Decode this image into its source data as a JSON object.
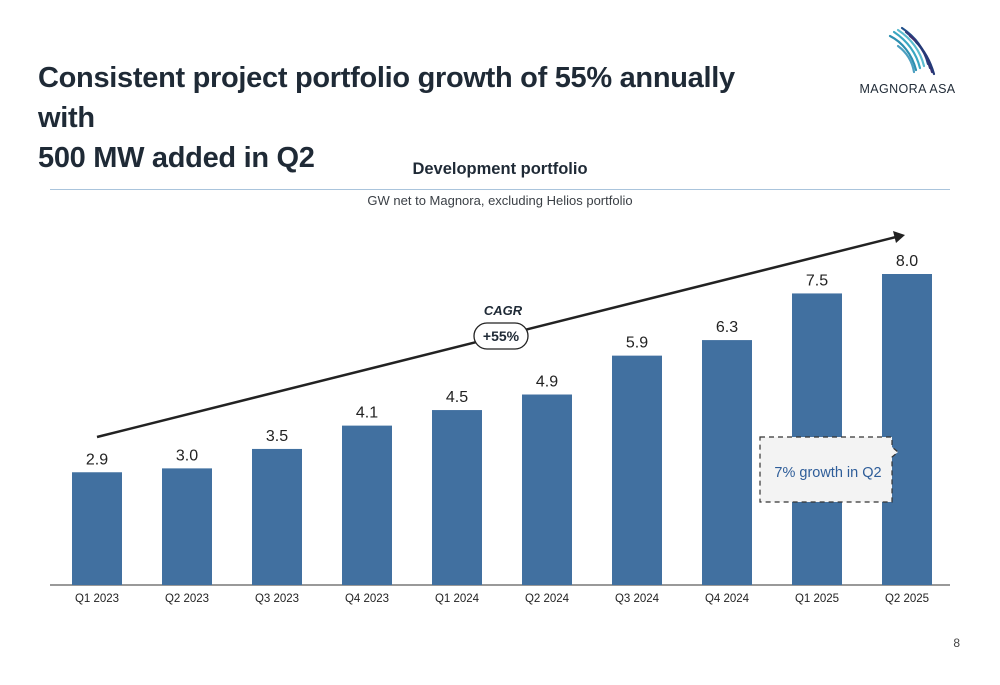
{
  "header": {
    "title_line1": "Consistent project portfolio growth of 55% annually with",
    "title_line2": "500 MW added in Q2",
    "logo_text": "MAGNORA ASA",
    "logo_icon": "magnora-feather-icon"
  },
  "chart_data": {
    "type": "bar",
    "title": "Development portfolio",
    "subtitle": "GW net to Magnora, excluding Helios portfolio",
    "categories": [
      "Q1 2023",
      "Q2 2023",
      "Q3 2023",
      "Q4 2023",
      "Q1 2024",
      "Q2 2024",
      "Q3 2024",
      "Q4 2024",
      "Q1 2025",
      "Q2 2025"
    ],
    "values": [
      2.9,
      3.0,
      3.5,
      4.1,
      4.5,
      4.9,
      5.9,
      6.3,
      7.5,
      8.0
    ],
    "labels": [
      "2.9",
      "3.0",
      "3.5",
      "4.1",
      "4.5",
      "4.9",
      "5.9",
      "6.3",
      "7.5",
      "8.0"
    ],
    "ylim": [
      0,
      8.0
    ],
    "xlabel": "",
    "ylabel": "",
    "grid": false,
    "legend": "none",
    "bar_color": "#4170a0",
    "annotations": {
      "cagr_label": "CAGR",
      "cagr_value": "+55%",
      "callout": "7% growth in Q2",
      "callout_color": "#2e5d99"
    }
  },
  "footer": {
    "page_number": "8"
  }
}
